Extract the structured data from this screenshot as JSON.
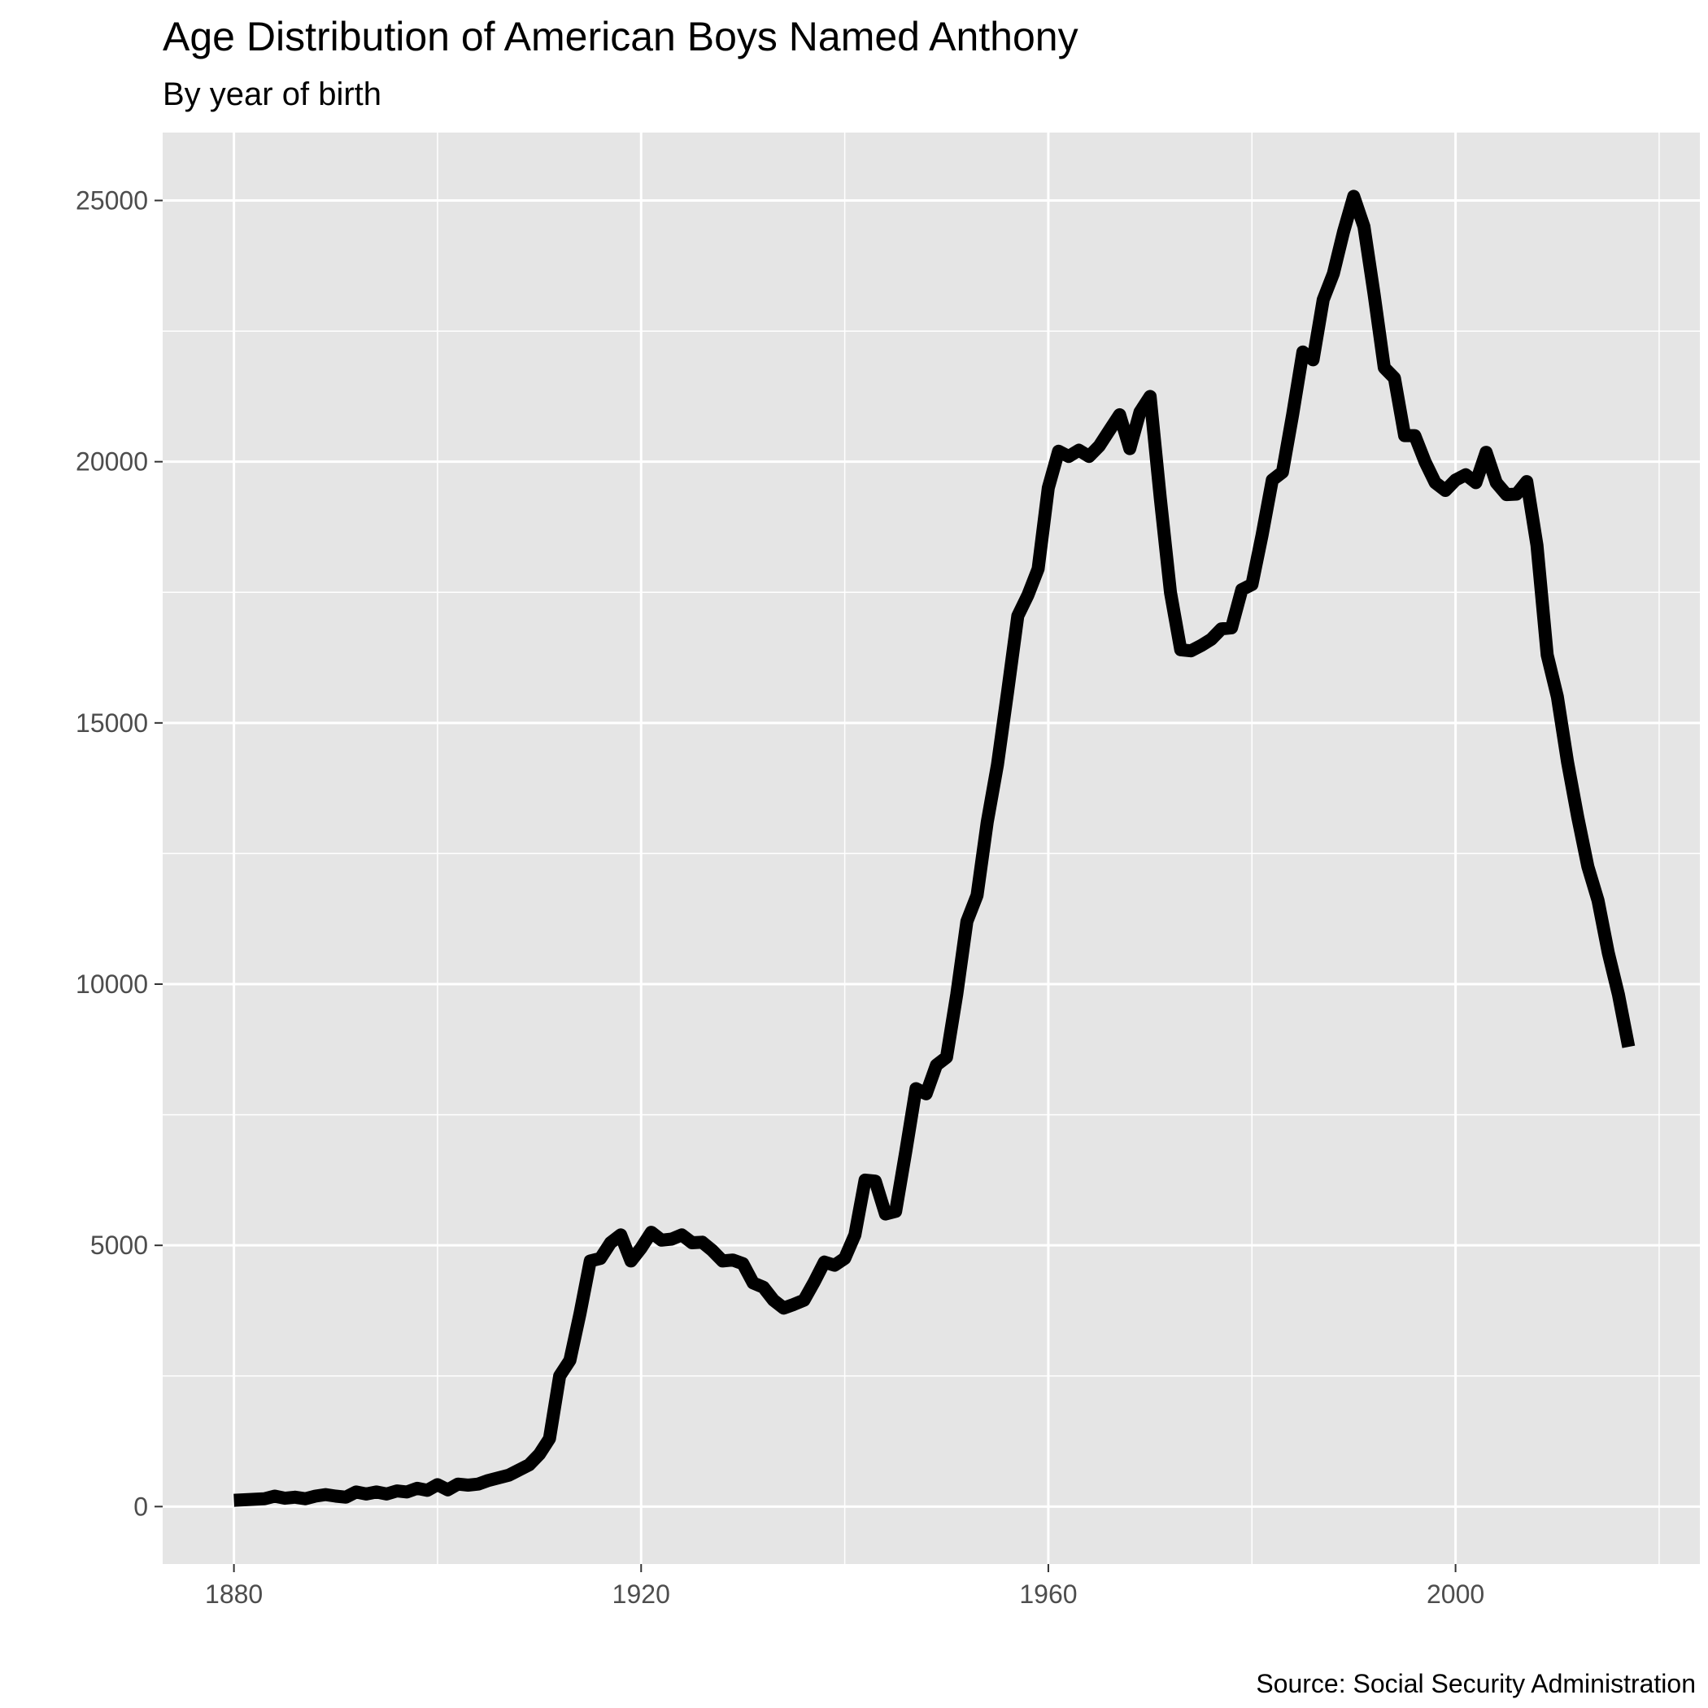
{
  "chart_data": {
    "type": "line",
    "title": "Age Distribution of American Boys Named Anthony",
    "subtitle": "By year of birth",
    "caption": "Source: Social Security Administration",
    "xlabel": "",
    "ylabel": "",
    "xlim": [
      1873,
      2024
    ],
    "ylim": [
      -1100,
      26300
    ],
    "x_ticks": [
      1880,
      1920,
      1960,
      2000
    ],
    "x_minor_ticks": [
      1900,
      1940,
      1980,
      2020
    ],
    "y_ticks": [
      0,
      5000,
      10000,
      15000,
      20000,
      25000
    ],
    "y_minor_ticks": [
      2500,
      7500,
      12500,
      17500,
      22500
    ],
    "grid": true,
    "line_color": "#000000",
    "panel_color": "#e5e5e5",
    "series": [
      {
        "x": [
          1880,
          1881,
          1882,
          1883,
          1884,
          1885,
          1886,
          1887,
          1888,
          1889,
          1890,
          1891,
          1892,
          1893,
          1894,
          1895,
          1896,
          1897,
          1898,
          1899,
          1900,
          1901,
          1902,
          1903,
          1904,
          1905,
          1906,
          1907,
          1908,
          1909,
          1910,
          1911,
          1912,
          1913,
          1914,
          1915,
          1916,
          1917,
          1918,
          1919,
          1920,
          1921,
          1922,
          1923,
          1924,
          1925,
          1926,
          1927,
          1928,
          1929,
          1930,
          1931,
          1932,
          1933,
          1934,
          1935,
          1936,
          1937,
          1938,
          1939,
          1940,
          1941,
          1942,
          1943,
          1944,
          1945,
          1946,
          1947,
          1948,
          1949,
          1950,
          1951,
          1952,
          1953,
          1954,
          1955,
          1956,
          1957,
          1958,
          1959,
          1960,
          1961,
          1962,
          1963,
          1964,
          1965,
          1966,
          1967,
          1968,
          1969,
          1970,
          1971,
          1972,
          1973,
          1974,
          1975,
          1976,
          1977,
          1978,
          1979,
          1980,
          1981,
          1982,
          1983,
          1984,
          1985,
          1986,
          1987,
          1988,
          1989,
          1990,
          1991,
          1992,
          1993,
          1994,
          1995,
          1996,
          1997,
          1998,
          1999,
          2000,
          2001,
          2002,
          2003,
          2004,
          2005,
          2006,
          2007,
          2008,
          2009,
          2010,
          2011,
          2012,
          2013,
          2014,
          2015,
          2016,
          2017
        ],
        "values": [
          120,
          130,
          140,
          150,
          200,
          160,
          180,
          150,
          200,
          230,
          200,
          180,
          280,
          240,
          280,
          240,
          300,
          280,
          350,
          310,
          420,
          320,
          430,
          410,
          430,
          500,
          550,
          600,
          700,
          800,
          1000,
          1300,
          2500,
          2800,
          3700,
          4700,
          4750,
          5050,
          5200,
          4700,
          4950,
          5250,
          5100,
          5120,
          5200,
          5050,
          5060,
          4900,
          4700,
          4720,
          4650,
          4280,
          4200,
          3950,
          3800,
          3870,
          3950,
          4300,
          4680,
          4620,
          4750,
          5200,
          6250,
          6230,
          5600,
          5650,
          6800,
          8000,
          7900,
          8450,
          8600,
          9800,
          11200,
          11700,
          13100,
          14200,
          15600,
          17050,
          17450,
          17950,
          19500,
          20200,
          20100,
          20220,
          20100,
          20300,
          20600,
          20900,
          20250,
          20950,
          21250,
          19300,
          17500,
          16400,
          16380,
          16480,
          16600,
          16800,
          16820,
          17550,
          17650,
          18600,
          19650,
          19800,
          20900,
          22100,
          21950,
          23100,
          23600,
          24400,
          25080,
          24500,
          23200,
          21800,
          21600,
          20500,
          20500,
          20000,
          19600,
          19450,
          19650,
          19750,
          19600,
          20180,
          19600,
          19370,
          19380,
          19620,
          18400,
          16300,
          15500,
          14250,
          13200,
          12250,
          11600,
          10600,
          9800,
          8800
        ]
      }
    ]
  }
}
